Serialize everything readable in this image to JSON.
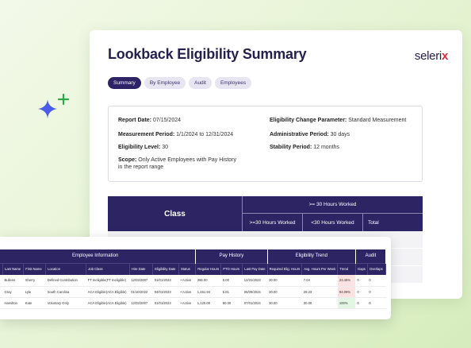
{
  "app": {
    "title": "Lookback Eligibility Summary",
    "logo_text": "seleri",
    "logo_mark": "x"
  },
  "tabs": [
    {
      "label": "Summary",
      "active": true
    },
    {
      "label": "By Employee",
      "active": false
    },
    {
      "label": "Audit",
      "active": false
    },
    {
      "label": "Employees",
      "active": false
    }
  ],
  "info": {
    "report_date": {
      "label": "Report Date:",
      "value": "07/15/2024"
    },
    "measurement_period": {
      "label": "Measurement Period:",
      "value": "1/1/2024 to 12/31/2024"
    },
    "eligibility_level": {
      "label": "Eligibility Level:",
      "value": "30"
    },
    "scope": {
      "label": "Scope:",
      "value": "Only Active Employees with Pay History",
      "value2": "in the report range"
    },
    "change_param": {
      "label": "Eligibility Change Parameter:",
      "value": "Standard Measurement"
    },
    "admin_period": {
      "label": "Administrative Period:",
      "value": "30 days"
    },
    "stability_period": {
      "label": "Stability Period:",
      "value": "12 months"
    }
  },
  "summary_table": {
    "class_header": "Class",
    "top_header": ">= 30 Hours Worked",
    "sub_headers": [
      ">=30 Hours Worked",
      "<30 Hours Worked",
      "Total"
    ]
  },
  "employee_table": {
    "groups": [
      "Employee Information",
      "Pay History",
      "Eligibility Trend",
      "Audit"
    ],
    "columns": [
      "",
      "Last Name",
      "First Name",
      "Location",
      "Job Class",
      "Hire Date",
      "Eligibility Date",
      "Status",
      "Regular Hours",
      "PTO Hours",
      "Last Pay Date",
      "Required Elig. Hours",
      "Avg. Hours Per Week",
      "Trend",
      "Gaps",
      "Overlaps"
    ],
    "rows": [
      [
        "d",
        "Bullens",
        "Sherry",
        "Defined Contribution",
        "FT Ineligible(FT Ineligible)",
        "12/03/2007",
        "01/01/2023",
        "• Active",
        "366.00",
        "0.00",
        "12/31/2023",
        "30.00",
        "7.04",
        "23.46%",
        "0",
        "0"
      ],
      [
        "",
        "Gray",
        "Lyle",
        "South Carolina",
        "ACA Eligible(ACA Eligible)",
        "01/10/2022",
        "04/01/2023",
        "• Active",
        "1,461.94",
        "5.81",
        "06/09/2024",
        "30.00",
        "28.23",
        "94.09%",
        "0",
        "0"
      ],
      [
        "d",
        "Hamilton",
        "Kate",
        "Voluntary Only",
        "ACA Eligible(ACA Eligible)",
        "12/03/2007",
        "01/01/2023",
        "• Active",
        "1,120.00",
        "80.00",
        "07/01/2024",
        "30.00",
        "30.00",
        "100%",
        "0",
        "0"
      ]
    ],
    "trend_colors": [
      "#c8373c",
      "#c8373c",
      "#2d8d3e"
    ]
  },
  "colors": {
    "brand": "#2c2463",
    "accent": "#d92d3a",
    "sparkle_blue": "#4b5de8",
    "sparkle_green": "#2ea84a"
  }
}
